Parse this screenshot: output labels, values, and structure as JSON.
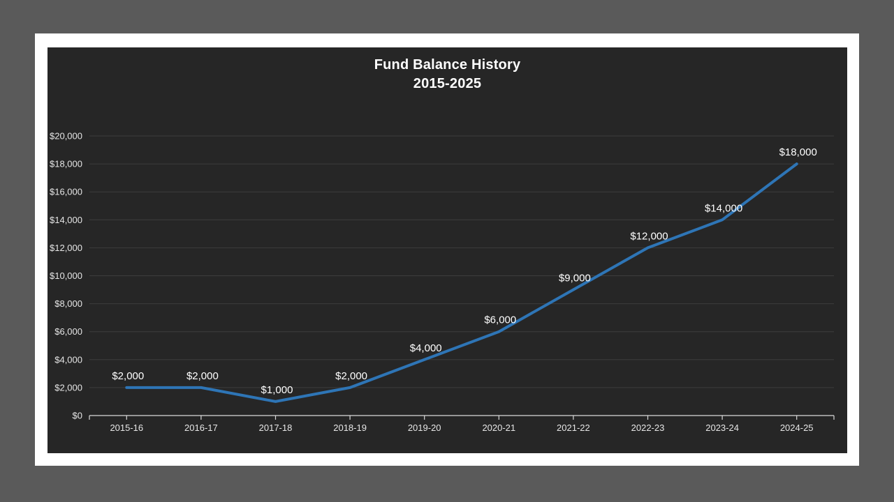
{
  "page": {
    "background": "#5a5a5a",
    "slide_background": "#ffffff"
  },
  "chart": {
    "title_line1": "Fund Balance History",
    "title_line2": "2015-2025",
    "background": "#262626",
    "title_color": "#ffffff"
  },
  "chart_data": {
    "type": "line",
    "title": "Fund Balance History 2015-2025",
    "categories": [
      "2015-16",
      "2016-17",
      "2017-18",
      "2018-19",
      "2019-20",
      "2020-21",
      "2021-22",
      "2022-23",
      "2023-24",
      "2024-25"
    ],
    "values": [
      2000,
      2000,
      1000,
      2000,
      4000,
      6000,
      9000,
      12000,
      14000,
      18000
    ],
    "data_labels": [
      "$2,000",
      "$2,000",
      "$1,000",
      "$2,000",
      "$4,000",
      "$6,000",
      "$9,000",
      "$12,000",
      "$14,000",
      "$18,000"
    ],
    "y_tick_labels": [
      "$0",
      "$2,000",
      "$4,000",
      "$6,000",
      "$8,000",
      "$10,000",
      "$12,000",
      "$14,000",
      "$16,000",
      "$18,000",
      "$20,000"
    ],
    "xlabel": "",
    "ylabel": "",
    "ylim": [
      0,
      20000
    ],
    "y_step": 2000,
    "grid": true,
    "legend": "none",
    "line_color": "#2e75b6",
    "gridline_color": "#3d3d3d",
    "axis_color": "#d9d9d9",
    "tick_label_color": "#e6e6e6",
    "data_label_color": "#ffffff"
  }
}
